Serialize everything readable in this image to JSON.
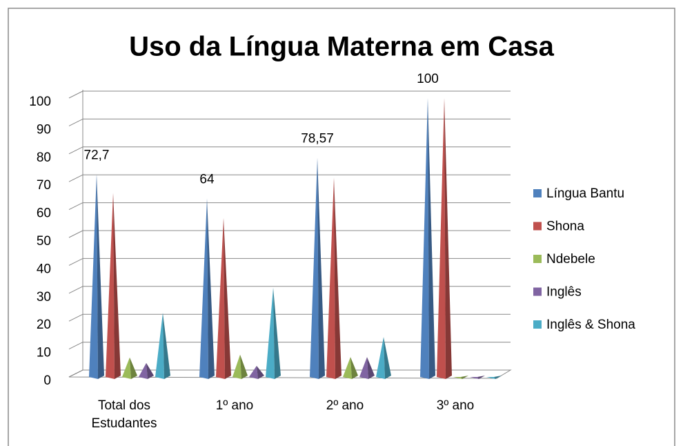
{
  "chart_data": {
    "type": "pyramid",
    "title": "Uso da Língua Materna em Casa",
    "categories": [
      "Total dos Estudantes",
      "1º ano",
      "2º ano",
      "3º ano"
    ],
    "series": [
      {
        "name": "Língua Bantu",
        "color": "#4f81bd",
        "values": [
          72.7,
          64,
          78.57,
          100
        ],
        "value_labels": [
          "72,7",
          "64",
          "78,57",
          "100"
        ]
      },
      {
        "name": "Shona",
        "color": "#c0504d",
        "values": [
          66,
          57,
          71.43,
          100
        ]
      },
      {
        "name": "Ndebele",
        "color": "#9bbb59",
        "values": [
          7,
          8,
          7.14,
          0
        ]
      },
      {
        "name": "Inglês",
        "color": "#8064a2",
        "values": [
          5,
          4,
          7.14,
          0
        ]
      },
      {
        "name": "Inglês & Shona",
        "color": "#4bacc6",
        "values": [
          23,
          32,
          14.29,
          0
        ]
      }
    ],
    "ylim": [
      0,
      100
    ],
    "yticks": [
      0,
      10,
      20,
      30,
      40,
      50,
      60,
      70,
      80,
      90,
      100
    ],
    "grid": true,
    "legend": "right"
  }
}
